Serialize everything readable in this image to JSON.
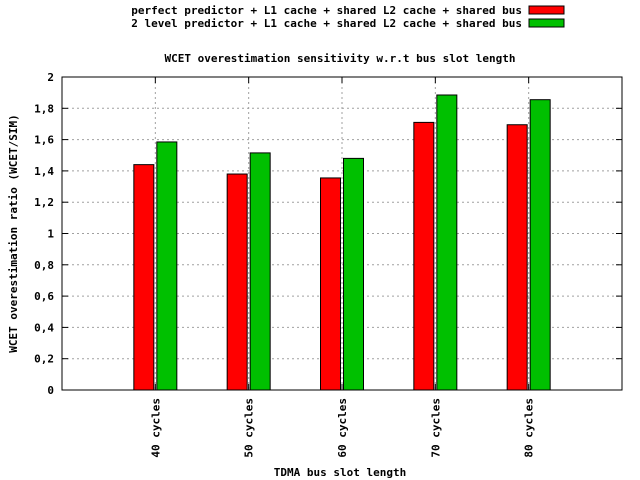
{
  "chart_data": {
    "type": "bar",
    "title": "WCET overestimation sensitivity w.r.t bus slot length",
    "xlabel": "TDMA bus slot length",
    "ylabel": "WCET overestimation ratio (WCET/SIM)",
    "categories": [
      "40 cycles",
      "50 cycles",
      "60 cycles",
      "70 cycles",
      "80 cycles"
    ],
    "ylim": [
      0,
      2
    ],
    "yticks": [
      0,
      0.2,
      0.4,
      0.6,
      0.8,
      1,
      1.2,
      1.4,
      1.6,
      1.8,
      2
    ],
    "ytick_labels": [
      "0",
      "0,2",
      "0,4",
      "0,6",
      "0,8",
      "1",
      "1,2",
      "1,4",
      "1,6",
      "1,8",
      "2"
    ],
    "grid": true,
    "legend_position": "top-right",
    "series": [
      {
        "name": "perfect predictor + L1 cache + shared L2 cache + shared bus",
        "color": "#ff0000",
        "values": [
          1.44,
          1.38,
          1.355,
          1.71,
          1.695
        ]
      },
      {
        "name": "2 level predictor + L1 cache + shared L2 cache + shared bus",
        "color": "#00c000",
        "values": [
          1.585,
          1.515,
          1.48,
          1.885,
          1.855
        ]
      }
    ]
  }
}
